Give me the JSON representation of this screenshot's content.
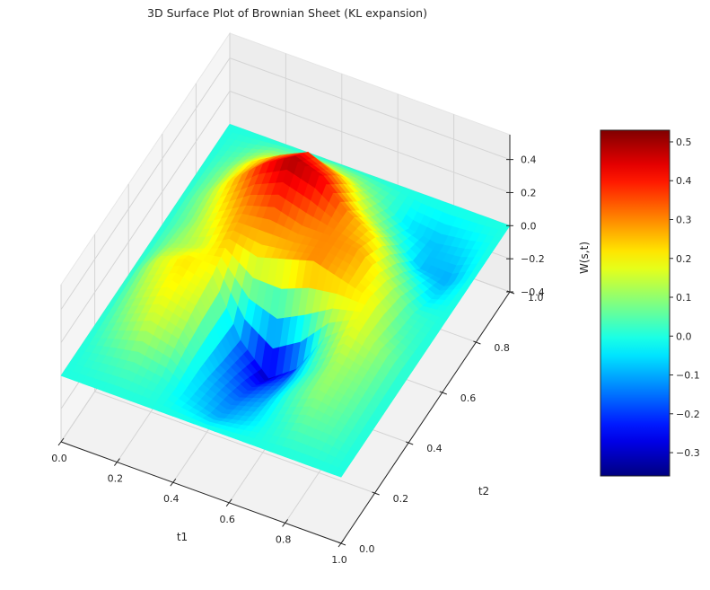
{
  "chart_data": {
    "type": "surface3d",
    "title": "3D Surface Plot of Brownian Sheet (KL expansion)",
    "xlabel": "t1",
    "ylabel": "t2",
    "zlabel": "W(s,t)",
    "xlim": [
      0.0,
      1.0
    ],
    "ylim": [
      0.0,
      1.0
    ],
    "zlim": [
      -0.4,
      0.55
    ],
    "x_ticks": [
      "0.0",
      "0.2",
      "0.4",
      "0.6",
      "0.8",
      "1.0"
    ],
    "y_ticks": [
      "0.0",
      "0.2",
      "0.4",
      "0.6",
      "0.8",
      "1.0"
    ],
    "z_ticks": [
      "−0.4",
      "−0.2",
      "0.0",
      "0.2",
      "0.4"
    ],
    "colormap": "jet",
    "colorbar": {
      "range": [
        -0.36,
        0.53
      ],
      "ticks": [
        "0.5",
        "0.4",
        "0.3",
        "0.2",
        "0.1",
        "0.0",
        "−0.1",
        "−0.2",
        "−0.3"
      ],
      "placement": "right"
    },
    "grid": true,
    "z_grid": [
      [
        0.0,
        0.0,
        0.0,
        0.0,
        0.0,
        0.0,
        0.0,
        0.0,
        0.0,
        0.0,
        0.0
      ],
      [
        0.0,
        0.03,
        0.05,
        0.02,
        -0.05,
        -0.1,
        -0.06,
        0.0,
        0.05,
        0.04,
        0.0
      ],
      [
        0.0,
        0.08,
        0.15,
        0.1,
        -0.08,
        -0.15,
        -0.1,
        0.02,
        0.1,
        0.06,
        0.0
      ],
      [
        0.0,
        0.12,
        0.2,
        0.15,
        -0.12,
        -0.22,
        -0.15,
        0.0,
        0.12,
        0.08,
        0.0
      ],
      [
        0.0,
        0.15,
        0.22,
        0.18,
        -0.15,
        -0.32,
        -0.2,
        0.05,
        0.18,
        0.1,
        0.0
      ],
      [
        0.0,
        0.1,
        0.15,
        0.25,
        0.2,
        0.25,
        0.3,
        0.25,
        0.2,
        0.05,
        0.0
      ],
      [
        0.0,
        0.08,
        0.2,
        0.3,
        0.35,
        0.3,
        0.3,
        0.28,
        0.15,
        0.02,
        0.0
      ],
      [
        0.0,
        0.1,
        0.25,
        0.4,
        0.5,
        0.45,
        0.3,
        0.2,
        0.05,
        -0.05,
        0.0
      ],
      [
        0.0,
        0.08,
        0.2,
        0.3,
        0.38,
        0.3,
        0.15,
        0.05,
        -0.08,
        -0.1,
        0.0
      ],
      [
        0.0,
        0.04,
        0.1,
        0.12,
        0.15,
        0.12,
        0.05,
        -0.05,
        -0.08,
        -0.05,
        0.0
      ],
      [
        0.0,
        0.0,
        0.0,
        0.0,
        0.0,
        0.0,
        0.0,
        0.0,
        0.0,
        0.0,
        0.0
      ]
    ]
  }
}
